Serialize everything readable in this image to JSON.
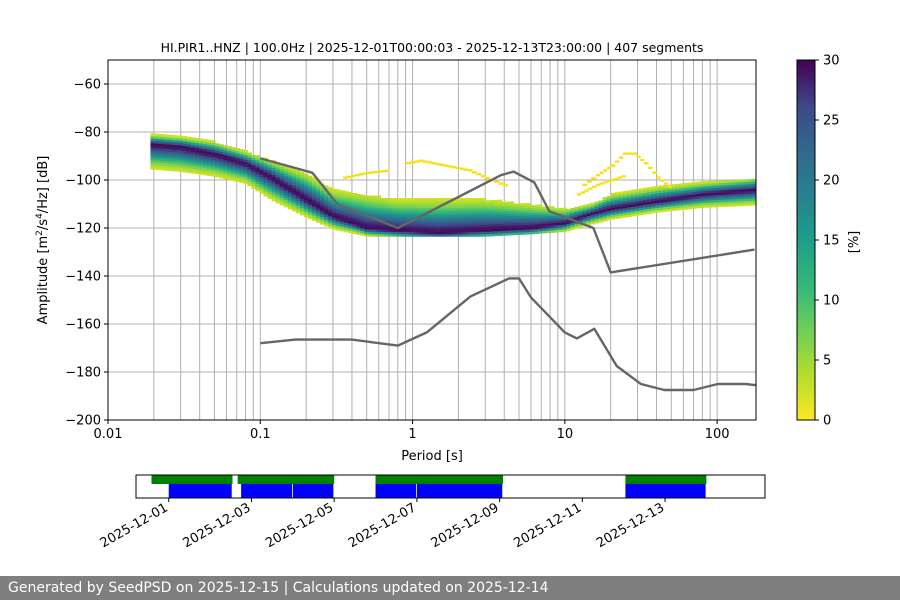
{
  "chart_data": [
    {
      "type": "heatmap",
      "title": "HI.PIR1..HNZ | 100.0Hz | 2025-12-01T00:00:03 - 2025-12-13T23:00:00 | 407 segments",
      "xlabel": "Period [s]",
      "ylabel_parts": [
        "Amplitude [m",
        "2",
        "/s",
        "4",
        "/Hz] [dB]"
      ],
      "x_scale": "log",
      "xlim": [
        0.01,
        180
      ],
      "ylim": [
        -200,
        -50
      ],
      "x_ticks": [
        0.01,
        0.1,
        1,
        10,
        100
      ],
      "x_tick_labels": [
        "0.01",
        "0.1",
        "1",
        "10",
        "100"
      ],
      "y_ticks": [
        -200,
        -180,
        -160,
        -140,
        -120,
        -100,
        -80,
        -60
      ],
      "y_tick_labels": [
        "−200",
        "−180",
        "−160",
        "−140",
        "−120",
        "−100",
        "−80",
        "−60"
      ],
      "grid": {
        "x": true,
        "y": true
      },
      "colorbar": {
        "label": "[%]",
        "range": [
          0,
          30
        ],
        "ticks": [
          0,
          5,
          10,
          15,
          20,
          25,
          30
        ],
        "tick_labels": [
          "0",
          "5",
          "10",
          "15",
          "20",
          "25",
          "30"
        ],
        "colormap": "viridis_r"
      },
      "mode_curve": [
        [
          0.019,
          -85
        ],
        [
          0.03,
          -86
        ],
        [
          0.05,
          -89
        ],
        [
          0.08,
          -93
        ],
        [
          0.12,
          -99
        ],
        [
          0.2,
          -108
        ],
        [
          0.3,
          -115
        ],
        [
          0.5,
          -120
        ],
        [
          0.8,
          -121
        ],
        [
          1.5,
          -122
        ],
        [
          3,
          -121
        ],
        [
          6,
          -120
        ],
        [
          10,
          -118
        ],
        [
          15,
          -114
        ],
        [
          20,
          -112
        ],
        [
          40,
          -109
        ],
        [
          80,
          -106
        ],
        [
          180,
          -104
        ]
      ],
      "spread_upper": [
        [
          0.019,
          -81
        ],
        [
          0.03,
          -82
        ],
        [
          0.05,
          -84
        ],
        [
          0.08,
          -88
        ],
        [
          0.12,
          -92
        ],
        [
          0.2,
          -97
        ],
        [
          0.3,
          -104
        ],
        [
          0.5,
          -106
        ],
        [
          0.8,
          -108
        ],
        [
          1.5,
          -108
        ],
        [
          3,
          -108
        ],
        [
          6,
          -110
        ],
        [
          10,
          -112
        ],
        [
          15,
          -110
        ],
        [
          20,
          -106
        ],
        [
          40,
          -103
        ],
        [
          80,
          -101
        ],
        [
          180,
          -99
        ]
      ],
      "spread_lower": [
        [
          0.019,
          -95
        ],
        [
          0.03,
          -96
        ],
        [
          0.05,
          -98
        ],
        [
          0.08,
          -101
        ],
        [
          0.12,
          -108
        ],
        [
          0.2,
          -115
        ],
        [
          0.3,
          -120
        ],
        [
          0.5,
          -123
        ],
        [
          0.8,
          -123
        ],
        [
          1.5,
          -123
        ],
        [
          3,
          -123
        ],
        [
          6,
          -122
        ],
        [
          10,
          -121
        ],
        [
          15,
          -118
        ],
        [
          20,
          -116
        ],
        [
          40,
          -113
        ],
        [
          80,
          -111
        ],
        [
          180,
          -110
        ]
      ],
      "secondary_lines": [
        [
          [
            0.9,
            -93
          ],
          [
            1.1,
            -92
          ],
          [
            1.6,
            -94
          ],
          [
            2.3,
            -96
          ],
          [
            3.2,
            -100
          ],
          [
            4.2,
            -103
          ]
        ],
        [
          [
            0.35,
            -99
          ],
          [
            0.5,
            -97
          ],
          [
            0.7,
            -96
          ]
        ],
        [
          [
            13,
            -102
          ],
          [
            16,
            -98
          ],
          [
            20,
            -94
          ],
          [
            24,
            -89
          ],
          [
            28,
            -89
          ],
          [
            33,
            -93
          ],
          [
            40,
            -99
          ],
          [
            50,
            -104
          ]
        ],
        [
          [
            12,
            -106
          ],
          [
            16,
            -102
          ],
          [
            20,
            -100
          ],
          [
            25,
            -98
          ]
        ]
      ],
      "noise_models": {
        "nhnm": [
          [
            0.1,
            -91
          ],
          [
            0.17,
            -95
          ],
          [
            0.22,
            -97
          ],
          [
            0.32,
            -110
          ],
          [
            0.8,
            -120
          ],
          [
            3.8,
            -98
          ],
          [
            4.6,
            -96.5
          ],
          [
            6.3,
            -101
          ],
          [
            7.9,
            -113
          ],
          [
            15.4,
            -120
          ],
          [
            20,
            -138.5
          ],
          [
            176,
            -129
          ]
        ],
        "nlnm": [
          [
            0.1,
            -168
          ],
          [
            0.17,
            -166.5
          ],
          [
            0.4,
            -166.5
          ],
          [
            0.8,
            -169
          ],
          [
            1.24,
            -163.5
          ],
          [
            2.4,
            -148.5
          ],
          [
            4.3,
            -141
          ],
          [
            5,
            -141
          ],
          [
            6,
            -149
          ],
          [
            10,
            -163.5
          ],
          [
            12,
            -166
          ],
          [
            15.6,
            -162
          ],
          [
            21.9,
            -177.5
          ],
          [
            31.6,
            -185
          ],
          [
            45,
            -187.5
          ],
          [
            70,
            -187.5
          ],
          [
            101,
            -185
          ],
          [
            154,
            -185
          ],
          [
            180,
            -185.5
          ]
        ]
      }
    },
    {
      "type": "timeline",
      "x_ticks": [
        "2025-12-01",
        "2025-12-03",
        "2025-12-05",
        "2025-12-07",
        "2025-12-09",
        "2025-12-11",
        "2025-12-13"
      ],
      "green_segments": [
        [
          "2025-11-30T14:00",
          "2025-12-02T13:00"
        ],
        [
          "2025-12-02T16:00",
          "2025-12-05T00:00"
        ],
        [
          "2025-12-06T00:00",
          "2025-12-09T02:00"
        ],
        [
          "2025-12-12T01:00",
          "2025-12-14T00:00"
        ]
      ],
      "blue_segments": [
        [
          "2025-12-01T00:00",
          "2025-12-02T13:00"
        ],
        [
          "2025-12-02T18:00",
          "2025-12-04T00:00"
        ],
        [
          "2025-12-04T00:00",
          "2025-12-05T00:00"
        ],
        [
          "2025-12-06T00:00",
          "2025-12-07T00:00"
        ],
        [
          "2025-12-07T00:00",
          "2025-12-09T02:00"
        ],
        [
          "2025-12-12T01:00",
          "2025-12-14T00:00"
        ]
      ],
      "colors": {
        "green": "#008000",
        "blue": "#0000ff"
      }
    }
  ],
  "footer": {
    "text": "Generated by SeedPSD on 2025-12-15 | Calculations updated on 2025-12-14"
  }
}
